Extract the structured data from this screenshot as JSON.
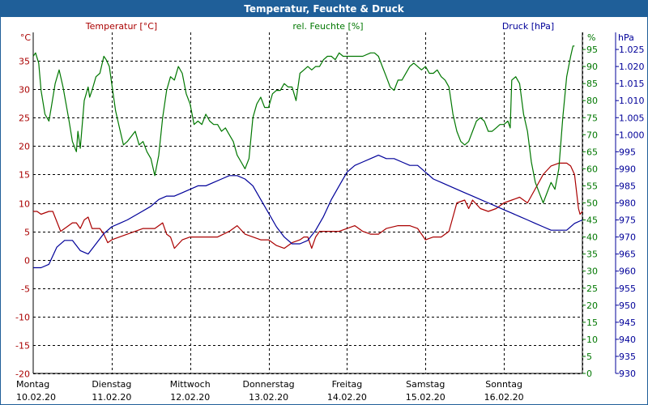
{
  "title": "Temperatur, Feuchte & Druck",
  "colors": {
    "temperature": "#aa0000",
    "humidity": "#007700",
    "pressure": "#000099",
    "title_bg": "#1f5f99",
    "grid": "#000000"
  },
  "chart_data": {
    "type": "line",
    "title": "Temperatur, Feuchte & Druck",
    "axes": {
      "temperature": {
        "label": "Temperatur [°C]",
        "unit": "°C",
        "range": [
          -20,
          40
        ],
        "ticks": [
          -20,
          -15,
          -10,
          -5,
          0,
          5,
          10,
          15,
          20,
          25,
          30,
          35
        ]
      },
      "humidity": {
        "label": "rel. Feuchte [%]",
        "unit": "%",
        "range": [
          0,
          100
        ],
        "ticks": [
          0,
          5,
          10,
          15,
          20,
          25,
          30,
          35,
          40,
          45,
          50,
          55,
          60,
          65,
          70,
          75,
          80,
          85,
          90,
          95
        ]
      },
      "pressure": {
        "label": "Druck [hPa]",
        "unit": "hPa",
        "range": [
          930,
          1030
        ],
        "ticks": [
          "930",
          "935",
          "940",
          "945",
          "950",
          "955",
          "960",
          "965",
          "970",
          "975",
          "980",
          "985",
          "990",
          "995",
          "1.000",
          "1.005",
          "1.010",
          "1.015",
          "1.020",
          "1.025"
        ]
      }
    },
    "x_range": [
      0,
      7
    ],
    "x_labels": [
      {
        "day": "Montag",
        "date": "10.02.20"
      },
      {
        "day": "Dienstag",
        "date": "11.02.20"
      },
      {
        "day": "Mittwoch",
        "date": "12.02.20"
      },
      {
        "day": "Donnerstag",
        "date": "13.02.20"
      },
      {
        "day": "Freitag",
        "date": "14.02.20"
      },
      {
        "day": "Samstag",
        "date": "15.02.20"
      },
      {
        "day": "Sonntag",
        "date": "16.02.20"
      }
    ],
    "series": [
      {
        "name": "Temperatur [°C]",
        "axis": "temperature",
        "points": [
          [
            0.0,
            8.5
          ],
          [
            0.05,
            8.5
          ],
          [
            0.1,
            8.0
          ],
          [
            0.2,
            8.5
          ],
          [
            0.25,
            8.5
          ],
          [
            0.35,
            5.0
          ],
          [
            0.45,
            6.0
          ],
          [
            0.5,
            6.5
          ],
          [
            0.55,
            6.5
          ],
          [
            0.6,
            5.5
          ],
          [
            0.65,
            7.0
          ],
          [
            0.7,
            7.5
          ],
          [
            0.75,
            5.5
          ],
          [
            0.85,
            5.5
          ],
          [
            0.9,
            4.5
          ],
          [
            0.95,
            3.0
          ],
          [
            1.0,
            3.5
          ],
          [
            1.1,
            4.0
          ],
          [
            1.2,
            4.5
          ],
          [
            1.3,
            5.0
          ],
          [
            1.4,
            5.5
          ],
          [
            1.5,
            5.5
          ],
          [
            1.55,
            5.5
          ],
          [
            1.6,
            6.0
          ],
          [
            1.65,
            6.5
          ],
          [
            1.7,
            4.5
          ],
          [
            1.75,
            4.0
          ],
          [
            1.8,
            2.0
          ],
          [
            1.9,
            3.5
          ],
          [
            2.0,
            4.0
          ],
          [
            2.2,
            4.0
          ],
          [
            2.35,
            4.0
          ],
          [
            2.5,
            5.0
          ],
          [
            2.6,
            6.0
          ],
          [
            2.7,
            4.5
          ],
          [
            2.8,
            4.0
          ],
          [
            2.9,
            3.5
          ],
          [
            3.0,
            3.5
          ],
          [
            3.1,
            2.5
          ],
          [
            3.2,
            2.0
          ],
          [
            3.3,
            3.0
          ],
          [
            3.4,
            3.5
          ],
          [
            3.45,
            4.0
          ],
          [
            3.5,
            4.0
          ],
          [
            3.55,
            2.0
          ],
          [
            3.6,
            4.0
          ],
          [
            3.65,
            5.0
          ],
          [
            3.75,
            5.0
          ],
          [
            3.9,
            5.0
          ],
          [
            4.0,
            5.5
          ],
          [
            4.1,
            6.0
          ],
          [
            4.2,
            5.0
          ],
          [
            4.3,
            4.5
          ],
          [
            4.4,
            4.5
          ],
          [
            4.5,
            5.5
          ],
          [
            4.65,
            6.0
          ],
          [
            4.8,
            6.0
          ],
          [
            4.9,
            5.5
          ],
          [
            5.0,
            3.5
          ],
          [
            5.1,
            4.0
          ],
          [
            5.2,
            4.0
          ],
          [
            5.3,
            5.0
          ],
          [
            5.4,
            10.0
          ],
          [
            5.5,
            10.5
          ],
          [
            5.55,
            9.0
          ],
          [
            5.6,
            10.5
          ],
          [
            5.7,
            9.0
          ],
          [
            5.8,
            8.5
          ],
          [
            5.9,
            9.0
          ],
          [
            6.0,
            10.0
          ],
          [
            6.1,
            10.5
          ],
          [
            6.2,
            11.0
          ],
          [
            6.3,
            10.0
          ],
          [
            6.4,
            12.5
          ],
          [
            6.5,
            15.0
          ],
          [
            6.6,
            16.5
          ],
          [
            6.7,
            17.0
          ],
          [
            6.8,
            17.0
          ],
          [
            6.85,
            16.5
          ],
          [
            6.9,
            15.0
          ],
          [
            6.95,
            9.0
          ],
          [
            6.97,
            8.0
          ],
          [
            7.0,
            8.5
          ]
        ]
      },
      {
        "name": "rel. Feuchte [%]",
        "axis": "humidity",
        "points": [
          [
            0.0,
            93
          ],
          [
            0.03,
            94
          ],
          [
            0.07,
            91
          ],
          [
            0.1,
            83
          ],
          [
            0.15,
            76
          ],
          [
            0.2,
            74
          ],
          [
            0.23,
            78
          ],
          [
            0.28,
            85
          ],
          [
            0.33,
            89
          ],
          [
            0.38,
            84
          ],
          [
            0.45,
            75
          ],
          [
            0.5,
            68
          ],
          [
            0.55,
            65
          ],
          [
            0.57,
            71
          ],
          [
            0.6,
            66
          ],
          [
            0.65,
            80
          ],
          [
            0.7,
            84
          ],
          [
            0.72,
            81
          ],
          [
            0.75,
            83
          ],
          [
            0.8,
            87
          ],
          [
            0.85,
            88
          ],
          [
            0.9,
            93
          ],
          [
            0.93,
            92
          ],
          [
            0.97,
            90
          ],
          [
            1.0,
            85
          ],
          [
            1.05,
            77
          ],
          [
            1.1,
            72
          ],
          [
            1.15,
            67
          ],
          [
            1.2,
            68
          ],
          [
            1.3,
            71
          ],
          [
            1.35,
            67
          ],
          [
            1.4,
            68
          ],
          [
            1.45,
            65
          ],
          [
            1.5,
            63
          ],
          [
            1.55,
            58
          ],
          [
            1.6,
            64
          ],
          [
            1.65,
            75
          ],
          [
            1.7,
            83
          ],
          [
            1.75,
            87
          ],
          [
            1.8,
            86
          ],
          [
            1.85,
            90
          ],
          [
            1.9,
            88
          ],
          [
            1.95,
            82
          ],
          [
            2.0,
            79
          ],
          [
            2.05,
            73
          ],
          [
            2.1,
            74
          ],
          [
            2.15,
            73
          ],
          [
            2.2,
            76
          ],
          [
            2.25,
            74
          ],
          [
            2.3,
            73
          ],
          [
            2.35,
            73
          ],
          [
            2.4,
            71
          ],
          [
            2.45,
            72
          ],
          [
            2.5,
            70
          ],
          [
            2.55,
            68
          ],
          [
            2.6,
            64
          ],
          [
            2.65,
            62
          ],
          [
            2.7,
            60
          ],
          [
            2.75,
            63
          ],
          [
            2.8,
            75
          ],
          [
            2.85,
            79
          ],
          [
            2.9,
            81
          ],
          [
            2.95,
            78
          ],
          [
            3.0,
            78
          ],
          [
            3.05,
            82
          ],
          [
            3.1,
            83
          ],
          [
            3.15,
            83
          ],
          [
            3.2,
            85
          ],
          [
            3.25,
            84
          ],
          [
            3.3,
            84
          ],
          [
            3.35,
            80
          ],
          [
            3.4,
            88
          ],
          [
            3.45,
            89
          ],
          [
            3.5,
            90
          ],
          [
            3.55,
            89
          ],
          [
            3.6,
            90
          ],
          [
            3.65,
            90
          ],
          [
            3.7,
            92
          ],
          [
            3.75,
            93
          ],
          [
            3.8,
            93
          ],
          [
            3.85,
            92
          ],
          [
            3.9,
            94
          ],
          [
            3.95,
            93
          ],
          [
            4.0,
            93
          ],
          [
            4.1,
            93
          ],
          [
            4.2,
            93
          ],
          [
            4.3,
            94
          ],
          [
            4.35,
            94
          ],
          [
            4.4,
            93
          ],
          [
            4.45,
            90
          ],
          [
            4.5,
            87
          ],
          [
            4.55,
            84
          ],
          [
            4.6,
            83
          ],
          [
            4.65,
            86
          ],
          [
            4.7,
            86
          ],
          [
            4.8,
            90
          ],
          [
            4.85,
            91
          ],
          [
            4.9,
            90
          ],
          [
            4.95,
            89
          ],
          [
            5.0,
            90
          ],
          [
            5.05,
            88
          ],
          [
            5.1,
            88
          ],
          [
            5.15,
            89
          ],
          [
            5.2,
            87
          ],
          [
            5.25,
            86
          ],
          [
            5.3,
            84
          ],
          [
            5.35,
            76
          ],
          [
            5.4,
            71
          ],
          [
            5.45,
            68
          ],
          [
            5.5,
            67
          ],
          [
            5.55,
            68
          ],
          [
            5.6,
            71
          ],
          [
            5.65,
            74
          ],
          [
            5.7,
            75
          ],
          [
            5.75,
            74
          ],
          [
            5.8,
            71
          ],
          [
            5.85,
            71
          ],
          [
            5.9,
            72
          ],
          [
            5.95,
            73
          ],
          [
            6.0,
            73
          ],
          [
            6.05,
            74
          ],
          [
            6.08,
            72
          ],
          [
            6.1,
            86
          ],
          [
            6.15,
            87
          ],
          [
            6.2,
            85
          ],
          [
            6.25,
            76
          ],
          [
            6.3,
            71
          ],
          [
            6.35,
            62
          ],
          [
            6.4,
            56
          ],
          [
            6.45,
            53
          ],
          [
            6.5,
            50
          ],
          [
            6.55,
            53
          ],
          [
            6.6,
            56
          ],
          [
            6.65,
            54
          ],
          [
            6.7,
            60
          ],
          [
            6.75,
            75
          ],
          [
            6.8,
            87
          ],
          [
            6.85,
            93
          ],
          [
            6.88,
            96
          ],
          [
            6.9,
            96
          ]
        ]
      },
      {
        "name": "Druck [hPa]",
        "axis": "pressure",
        "points": [
          [
            0.0,
            961
          ],
          [
            0.1,
            961
          ],
          [
            0.2,
            962
          ],
          [
            0.3,
            967
          ],
          [
            0.4,
            969
          ],
          [
            0.5,
            969
          ],
          [
            0.6,
            966
          ],
          [
            0.7,
            965
          ],
          [
            0.8,
            968
          ],
          [
            0.9,
            971
          ],
          [
            1.0,
            973
          ],
          [
            1.1,
            974
          ],
          [
            1.2,
            975
          ],
          [
            1.35,
            977
          ],
          [
            1.5,
            979
          ],
          [
            1.6,
            981
          ],
          [
            1.7,
            982
          ],
          [
            1.8,
            982
          ],
          [
            1.9,
            983
          ],
          [
            2.0,
            984
          ],
          [
            2.1,
            985
          ],
          [
            2.2,
            985
          ],
          [
            2.3,
            986
          ],
          [
            2.4,
            987
          ],
          [
            2.5,
            988
          ],
          [
            2.6,
            988
          ],
          [
            2.7,
            987
          ],
          [
            2.8,
            985
          ],
          [
            2.9,
            981
          ],
          [
            3.0,
            977
          ],
          [
            3.1,
            973
          ],
          [
            3.2,
            970
          ],
          [
            3.3,
            968
          ],
          [
            3.4,
            968
          ],
          [
            3.5,
            969
          ],
          [
            3.6,
            972
          ],
          [
            3.7,
            976
          ],
          [
            3.8,
            981
          ],
          [
            3.9,
            985
          ],
          [
            4.0,
            989
          ],
          [
            4.1,
            991
          ],
          [
            4.2,
            992
          ],
          [
            4.3,
            993
          ],
          [
            4.4,
            994
          ],
          [
            4.5,
            993
          ],
          [
            4.6,
            993
          ],
          [
            4.7,
            992
          ],
          [
            4.8,
            991
          ],
          [
            4.9,
            991
          ],
          [
            5.0,
            989
          ],
          [
            5.1,
            987
          ],
          [
            5.2,
            986
          ],
          [
            5.3,
            985
          ],
          [
            5.4,
            984
          ],
          [
            5.5,
            983
          ],
          [
            5.6,
            982
          ],
          [
            5.7,
            981
          ],
          [
            5.8,
            980
          ],
          [
            5.9,
            979
          ],
          [
            6.0,
            978
          ],
          [
            6.1,
            977
          ],
          [
            6.2,
            976
          ],
          [
            6.3,
            975
          ],
          [
            6.4,
            974
          ],
          [
            6.5,
            973
          ],
          [
            6.6,
            972
          ],
          [
            6.7,
            972
          ],
          [
            6.8,
            972
          ],
          [
            6.9,
            974
          ],
          [
            7.0,
            975
          ]
        ]
      }
    ]
  }
}
